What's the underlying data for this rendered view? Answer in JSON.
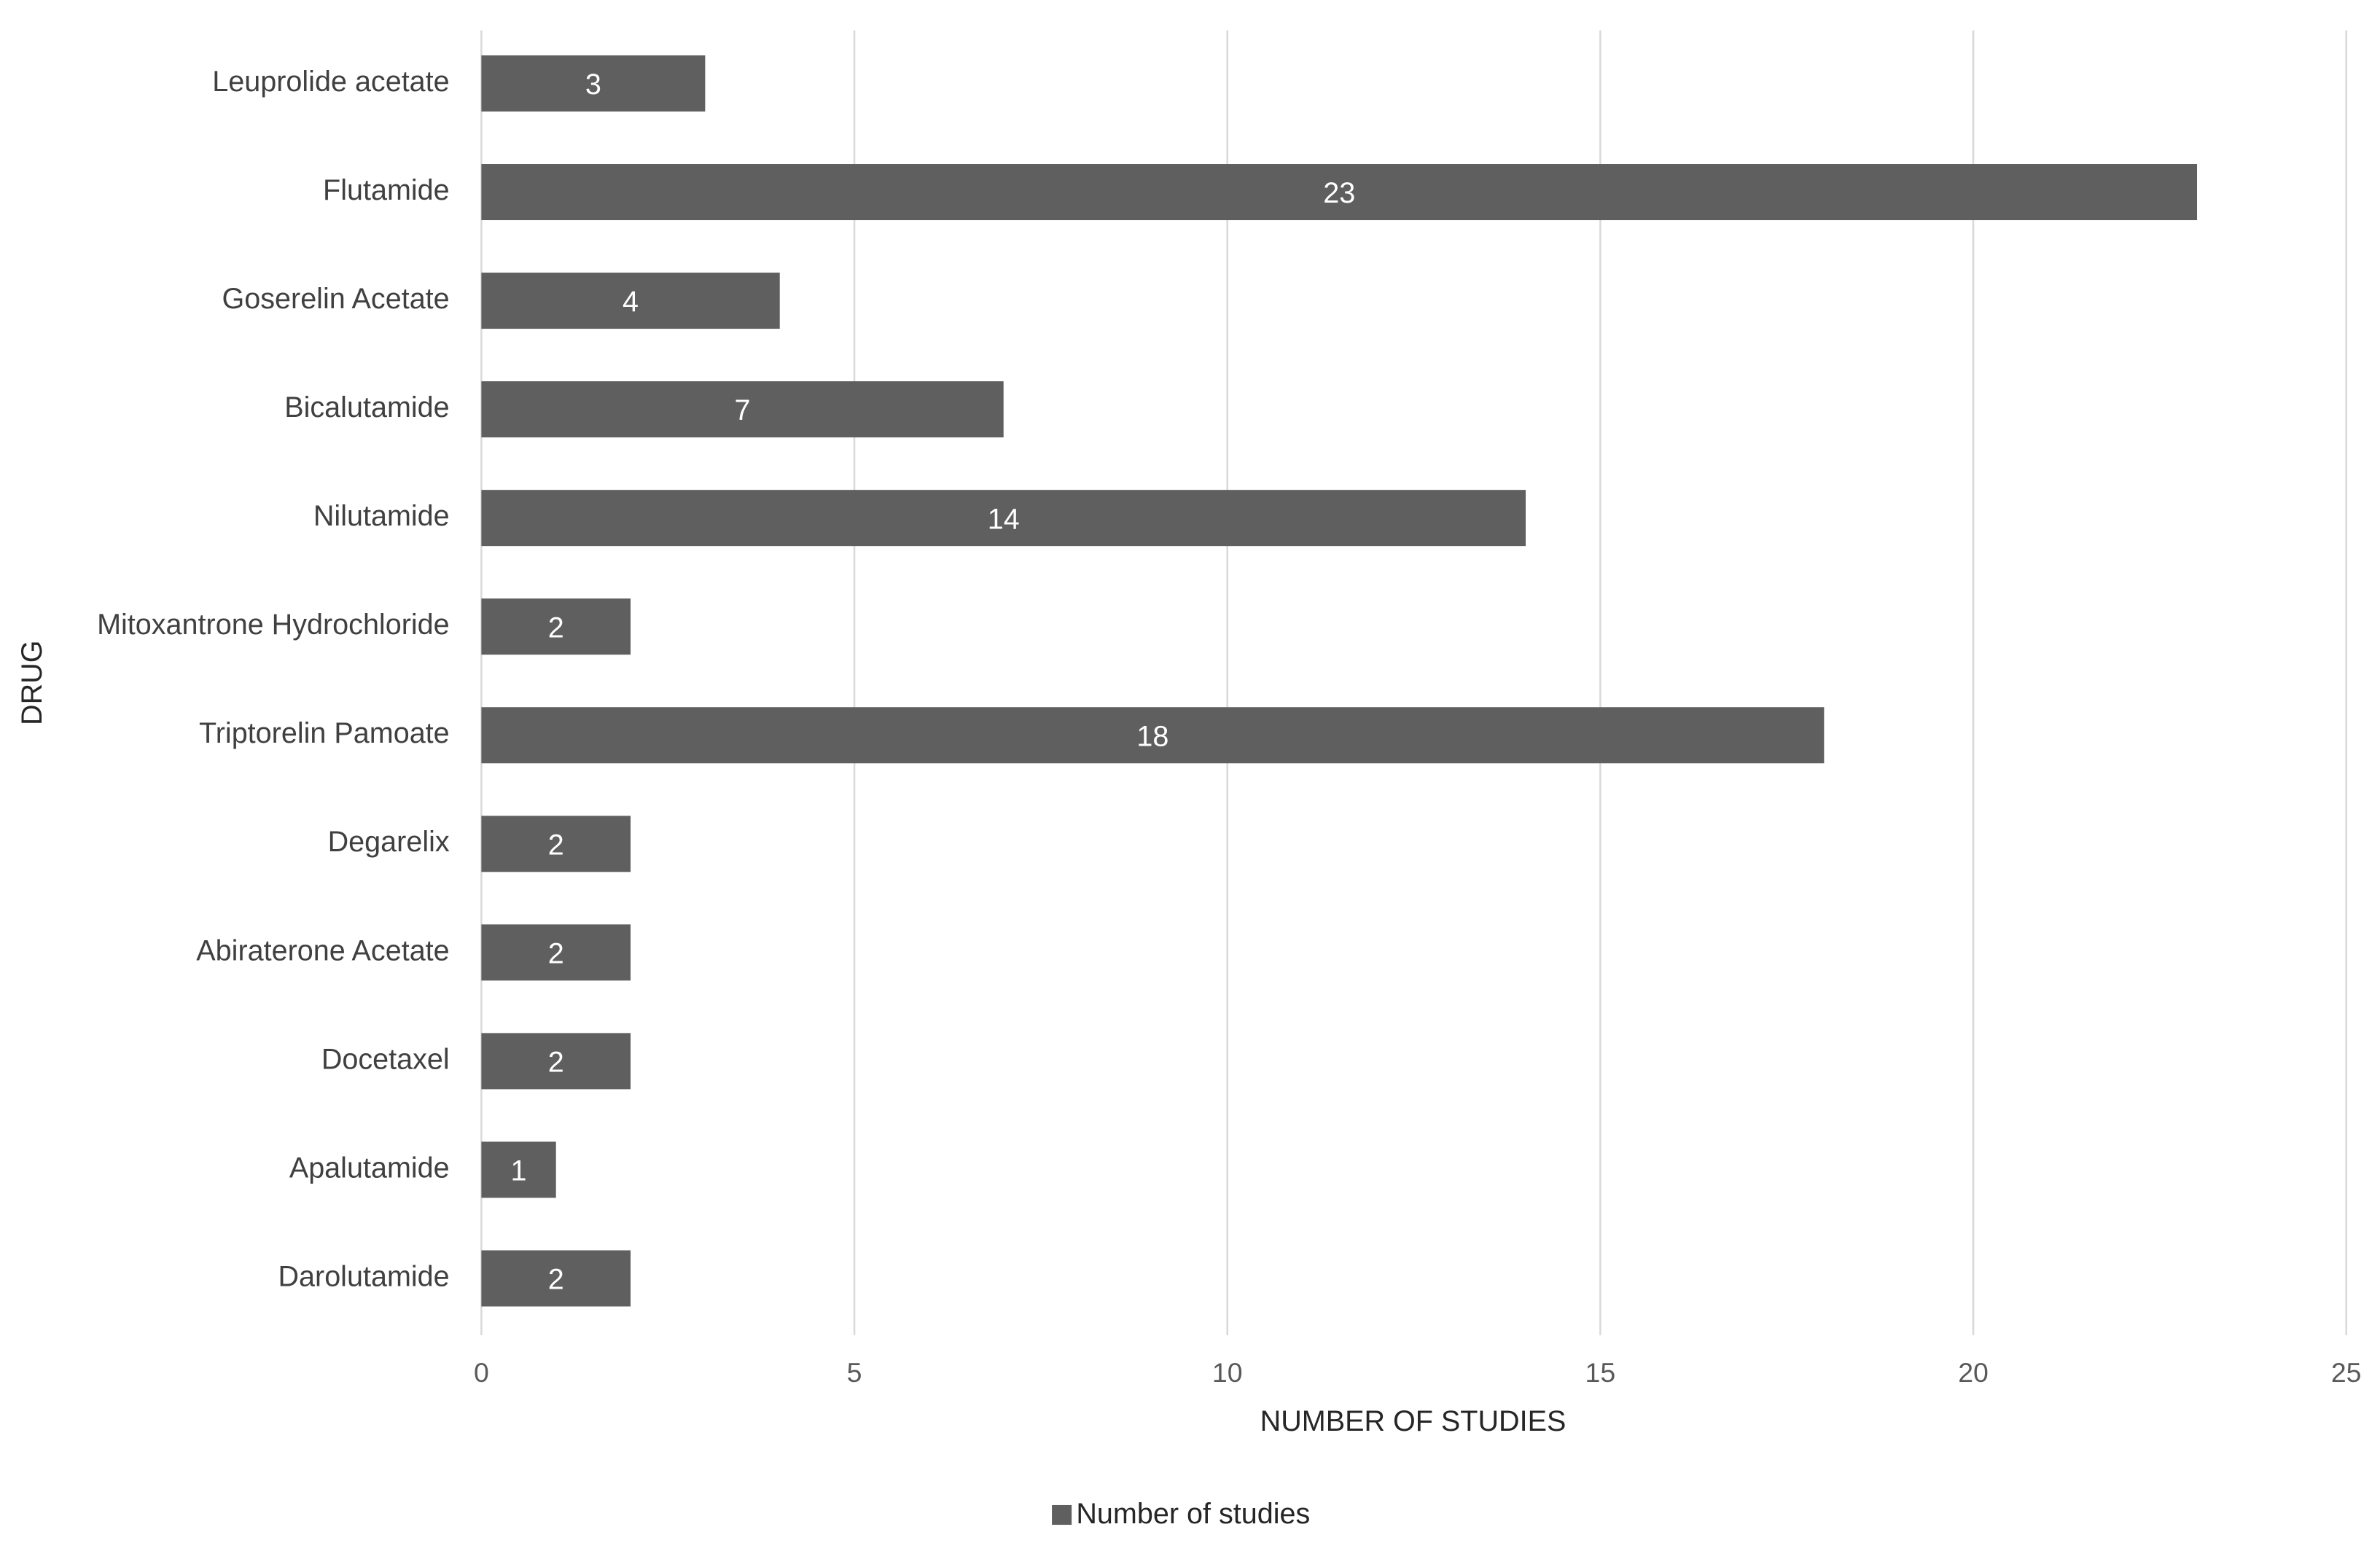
{
  "chart_data": {
    "type": "bar",
    "orientation": "horizontal",
    "x_label": "NUMBER OF STUDIES",
    "y_label": "DRUG",
    "categories": [
      "Leuprolide acetate",
      "Flutamide",
      "Goserelin Acetate",
      "Bicalutamide",
      "Nilutamide",
      "Mitoxantrone Hydrochloride",
      "Triptorelin Pamoate",
      "Degarelix",
      "Abiraterone Acetate",
      "Docetaxel",
      "Apalutamide",
      "Darolutamide"
    ],
    "series": [
      {
        "name": "Number of studies",
        "color": "#5f5f5f",
        "values": [
          3,
          23,
          4,
          7,
          14,
          2,
          18,
          2,
          2,
          2,
          1,
          2
        ]
      }
    ],
    "xlim": [
      0,
      25
    ],
    "xticks": [
      0,
      5,
      10,
      15,
      20,
      25
    ],
    "grid": true,
    "legend": "bottom",
    "data_labels": true
  }
}
